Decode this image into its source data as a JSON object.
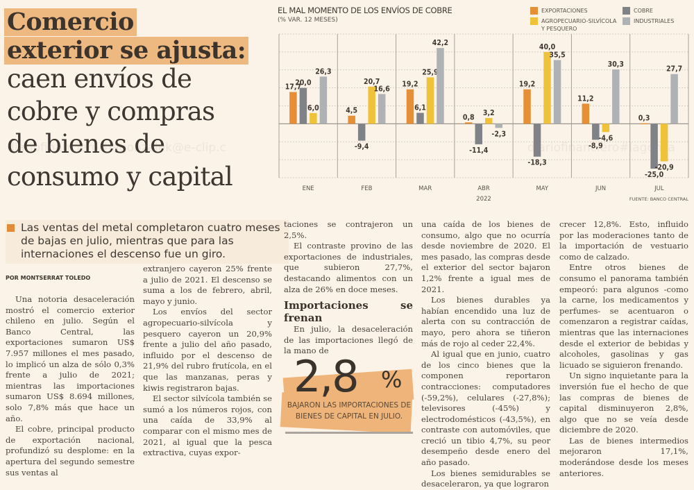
{
  "headline": {
    "bold_lines": [
      "Comercio",
      "exterior se ajusta:"
    ],
    "light_lines": [
      "caen envíos de",
      "cobre y compras",
      "de bienes de",
      "consumo y capital"
    ]
  },
  "deck": "Las ventas del metal completaron cuatro meses de bajas en julio, mientras que para las internaciones el descenso fue un giro.",
  "byline": "POR MONTSERRAT TOLEDO",
  "watermark": "diariofinanciero#lagonzalek@e-clip.c",
  "watermark2": "diariofinanciero#lagonza",
  "columns": [
    {
      "paragraphs": [
        "Una notoria desaceleración mostró el comercio exterior chileno en julio. Según el Banco Central, las exportaciones sumaron US$ 7.957 millones el mes pasado, lo implicó un alza de sólo 0,3% frente a julio de 2021; mientras las importaciones sumaron US$ 8.694 millones, solo 7,8% más que hace un año.",
        "El cobre, principal producto de exportación nacional, profundizó su desplome: en la apertura del segundo semestre sus ventas al"
      ]
    },
    {
      "paragraphs": [
        "extranjero cayeron 25% frente a julio de 2021. El descenso se suma a los de febrero, abril, mayo y junio.",
        "Los envíos del sector agropecuario-silvícola y pesquero cayeron un 20,9% frente a julio del año pasado, influido por el descenso de 21,9% del rubro frutícola, en el que las manzanas, peras y kiwis registraron bajas.",
        "El sector silvícola también se sumó a los números rojos, con una caída de 33,9% al comparar con el mismo mes de 2021, al igual que la pesca extractiva, cuyas expor-"
      ]
    },
    {
      "paragraphs": [
        "taciones se contrajeron un 2,5%.",
        "El contraste provino de las exportaciones de industriales, que subieron 27,7%, destacando alimentos con un alza de 26% en doce meses."
      ],
      "subhead": "Importaciones se frenan",
      "paragraphs_after": [
        "En julio, la desaceleración de las importaciones llegó de la mano de"
      ]
    },
    {
      "paragraphs": [
        "una caída de los bienes de consumo, algo que no ocurría desde noviembre de 2020. El mes pasado, las compras desde el exterior del sector bajaron 1,2% frente a igual mes de 2021.",
        "Los bienes durables ya habían encendido una luz de alerta con su contracción de mayo, pero ahora se tiñeron más de rojo al ceder 22,4%.",
        "Al igual que en junio, cuatro de los cinco bienes que la componen reportaron contracciones: computadores (-59,2%), celulares (-27,8%); televisores (-45%) y electrodomésticos (-43,5%), en contraste con automóviles, que creció un tibio 4,7%, su peor desempeño desde enero del año pasado.",
        "Los bienes semidurables se desaceleraron, ya que lograron"
      ]
    },
    {
      "paragraphs": [
        "crecer 12,8%. Esto, influido por las moderaciones tanto de la importación de vestuario como de calzado.",
        "Entre otros bienes de consumo el panorama también empeoró: para algunos -como la carne, los medicamentos y perfumes- se acentuaron o comenzaron a registrar caídas, mientras que las internaciones desde el exterior de bebidas y alcoholes, gasolinas y gas licuado se siguieron frenando.",
        "Un signo inquietante para la inversión fue el hecho de que las compras de bienes de capital disminuyeron 2,8%, algo que no se veía desde diciembre de 2020.",
        "Las de bienes intermedios mejoraron 17,1%, moderándose desde los meses anteriores."
      ]
    }
  ],
  "callout": {
    "number": "2,8",
    "percent": "%",
    "text": "BAJARON LAS IMPORTACIONES DE BIENES DE CAPITAL EN JULIO."
  },
  "chart_data": {
    "type": "bar",
    "title": "EL MAL MOMENTO DE LOS ENVÍOS DE COBRE",
    "subtitle": "(% VAR. 12 MESES)",
    "categories": [
      "ENE",
      "FEB",
      "MAR",
      "ABR",
      "MAY",
      "JUN",
      "JUL"
    ],
    "year_label": "2022",
    "source": "FUENTE: BANCO CENTRAL",
    "xlabel": "",
    "ylabel": "",
    "ylim": [
      -30,
      50
    ],
    "grid": true,
    "legend_position": "top-right",
    "series": [
      {
        "name": "EXPORTACIONES",
        "color": "#e58f36",
        "values": [
          17.7,
          4.5,
          19.2,
          0.8,
          19.2,
          11.2,
          0.3
        ],
        "labels": [
          "17,7",
          "4,5",
          "19,2",
          "0,8",
          "19,2",
          "11,2",
          "0,3"
        ]
      },
      {
        "name": "COBRE",
        "color": "#7f8387",
        "values": [
          20.0,
          -9.4,
          6.1,
          -11.4,
          -18.3,
          -8.9,
          -25.0
        ],
        "labels": [
          "20,0",
          "-9,4",
          "6,1",
          "-11,4",
          "-18,3",
          "-8,9",
          "-25,0"
        ]
      },
      {
        "name": "AGROPECUARIO-SILVÍCOLA Y PESQUERO",
        "color": "#efc23a",
        "values": [
          6.0,
          20.7,
          25.9,
          3.2,
          40.0,
          -4.6,
          -20.9
        ],
        "labels": [
          "6,0",
          "20,7",
          "25,9",
          "3,2",
          "40,0",
          "-4,6",
          "-20,9"
        ]
      },
      {
        "name": "INDUSTRIALES",
        "color": "#aeb2b5",
        "values": [
          26.3,
          16.6,
          42.2,
          -2.3,
          35.5,
          30.3,
          27.7
        ],
        "labels": [
          "26,3",
          "16,6",
          "42,2",
          "-2,3",
          "35,5",
          "30,3",
          "27,7"
        ]
      }
    ],
    "legend": [
      {
        "label": "EXPORTACIONES",
        "color": "#e58f36"
      },
      {
        "label": "COBRE",
        "color": "#7f8387"
      },
      {
        "label": "AGROPECUARIO-SILVÍCOLA",
        "label2": "Y PESQUERO",
        "color": "#efc23a"
      },
      {
        "label": "INDUSTRIALES",
        "color": "#aeb2b5"
      }
    ]
  }
}
